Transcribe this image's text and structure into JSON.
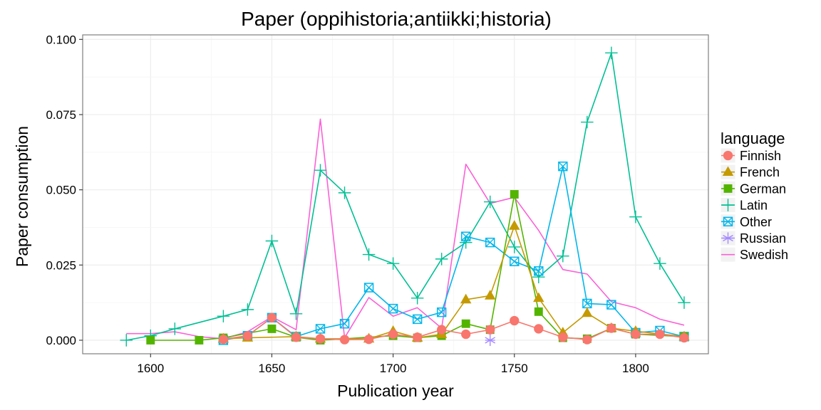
{
  "chart_data": {
    "type": "line",
    "title": "Paper (oppihistoria;antiikki;historia)",
    "xlabel": "Publication year",
    "ylabel": "Paper consumption",
    "xlim": [
      1572,
      1830
    ],
    "ylim": [
      -0.0045,
      0.1015
    ],
    "x_ticks": [
      1600,
      1650,
      1700,
      1750,
      1800
    ],
    "y_ticks": [
      0.0,
      0.025,
      0.05,
      0.075,
      0.1
    ],
    "x_tick_labels": [
      "1600",
      "1650",
      "1700",
      "1750",
      "1800"
    ],
    "y_tick_labels": [
      "0.000",
      "0.025",
      "0.050",
      "0.075",
      "0.100"
    ],
    "grid": true,
    "legend": {
      "title": "language",
      "placement": "right"
    },
    "series": [
      {
        "name": "Finnish",
        "color": "#F8766D",
        "marker": "circle",
        "points": [
          [
            1630,
            0.0003
          ],
          [
            1640,
            0.0015
          ],
          [
            1650,
            0.0075
          ],
          [
            1660,
            0.001
          ],
          [
            1670,
            0.0005
          ],
          [
            1680,
            0.0002
          ],
          [
            1690,
            0.0003
          ],
          [
            1700,
            0.002
          ],
          [
            1710,
            0.001
          ],
          [
            1720,
            0.0035
          ],
          [
            1730,
            0.002
          ],
          [
            1740,
            0.0035
          ],
          [
            1750,
            0.0065
          ],
          [
            1760,
            0.0038
          ],
          [
            1770,
            0.001
          ],
          [
            1780,
            0.0002
          ],
          [
            1790,
            0.004
          ],
          [
            1800,
            0.002
          ],
          [
            1810,
            0.002
          ],
          [
            1820,
            0.0008
          ]
        ]
      },
      {
        "name": "French",
        "color": "#C49A00",
        "marker": "triangle",
        "points": [
          [
            1630,
            0.0005
          ],
          [
            1640,
            0.0008
          ],
          [
            1660,
            0.0012
          ],
          [
            1670,
            0.0005
          ],
          [
            1690,
            0.0005
          ],
          [
            1700,
            0.003
          ],
          [
            1710,
            0.0008
          ],
          [
            1720,
            0.002
          ],
          [
            1730,
            0.0135
          ],
          [
            1740,
            0.0148
          ],
          [
            1750,
            0.038
          ],
          [
            1760,
            0.014
          ],
          [
            1770,
            0.0025
          ],
          [
            1780,
            0.009
          ],
          [
            1790,
            0.004
          ],
          [
            1800,
            0.003
          ],
          [
            1820,
            0.0012
          ]
        ]
      },
      {
        "name": "German",
        "color": "#53B400",
        "marker": "square",
        "points": [
          [
            1600,
            0.0
          ],
          [
            1620,
            0.0
          ],
          [
            1630,
            0.0008
          ],
          [
            1650,
            0.0038
          ],
          [
            1660,
            0.001
          ],
          [
            1670,
            0.0
          ],
          [
            1700,
            0.0015
          ],
          [
            1710,
            0.0008
          ],
          [
            1720,
            0.0015
          ],
          [
            1730,
            0.0055
          ],
          [
            1740,
            0.0035
          ],
          [
            1750,
            0.0485
          ],
          [
            1760,
            0.0095
          ],
          [
            1770,
            0.0008
          ],
          [
            1780,
            0.0005
          ],
          [
            1790,
            0.004
          ],
          [
            1800,
            0.002
          ],
          [
            1820,
            0.0012
          ]
        ]
      },
      {
        "name": "Latin",
        "color": "#00C094",
        "marker": "plus",
        "points": [
          [
            1590,
            0.0
          ],
          [
            1600,
            0.0015
          ],
          [
            1610,
            0.0038
          ],
          [
            1630,
            0.008
          ],
          [
            1640,
            0.0102
          ],
          [
            1650,
            0.033
          ],
          [
            1660,
            0.0088
          ],
          [
            1670,
            0.0565
          ],
          [
            1680,
            0.049
          ],
          [
            1690,
            0.0285
          ],
          [
            1700,
            0.0255
          ],
          [
            1710,
            0.014
          ],
          [
            1720,
            0.027
          ],
          [
            1730,
            0.0325
          ],
          [
            1740,
            0.046
          ],
          [
            1750,
            0.031
          ],
          [
            1760,
            0.021
          ],
          [
            1770,
            0.028
          ],
          [
            1780,
            0.0725
          ],
          [
            1790,
            0.0955
          ],
          [
            1800,
            0.041
          ],
          [
            1810,
            0.0255
          ],
          [
            1820,
            0.0125
          ]
        ]
      },
      {
        "name": "Other",
        "color": "#00B6EB",
        "marker": "boxx",
        "points": [
          [
            1630,
            0.0
          ],
          [
            1640,
            0.0015
          ],
          [
            1650,
            0.0075
          ],
          [
            1660,
            0.0012
          ],
          [
            1670,
            0.0038
          ],
          [
            1680,
            0.0055
          ],
          [
            1690,
            0.0175
          ],
          [
            1700,
            0.0105
          ],
          [
            1710,
            0.007
          ],
          [
            1720,
            0.0093
          ],
          [
            1730,
            0.0345
          ],
          [
            1740,
            0.0325
          ],
          [
            1750,
            0.0262
          ],
          [
            1760,
            0.023
          ],
          [
            1770,
            0.0578
          ],
          [
            1780,
            0.0122
          ],
          [
            1790,
            0.0118
          ],
          [
            1800,
            0.0025
          ],
          [
            1810,
            0.0032
          ],
          [
            1820,
            0.0012
          ]
        ]
      },
      {
        "name": "Russian",
        "color": "#A58AFF",
        "marker": "asterisk",
        "points": [
          [
            1740,
            0.0
          ]
        ]
      },
      {
        "name": "Swedish",
        "color": "#FB61D7",
        "marker": "none",
        "points": [
          [
            1590,
            0.0022
          ],
          [
            1600,
            0.0022
          ],
          [
            1610,
            0.0028
          ],
          [
            1620,
            0.0012
          ],
          [
            1630,
            0.0005
          ],
          [
            1640,
            0.0028
          ],
          [
            1650,
            0.0078
          ],
          [
            1660,
            0.0035
          ],
          [
            1670,
            0.0735
          ],
          [
            1680,
            0.0008
          ],
          [
            1690,
            0.0142
          ],
          [
            1700,
            0.008
          ],
          [
            1710,
            0.0108
          ],
          [
            1720,
            0.004
          ],
          [
            1730,
            0.0585
          ],
          [
            1740,
            0.0455
          ],
          [
            1750,
            0.0475
          ],
          [
            1760,
            0.0365
          ],
          [
            1770,
            0.0235
          ],
          [
            1780,
            0.022
          ],
          [
            1790,
            0.0128
          ],
          [
            1800,
            0.0108
          ],
          [
            1810,
            0.007
          ],
          [
            1820,
            0.005
          ]
        ]
      }
    ]
  }
}
